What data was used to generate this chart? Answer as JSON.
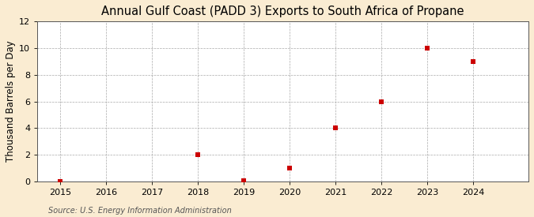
{
  "title": "Annual Gulf Coast (PADD 3) Exports to South Africa of Propane",
  "ylabel": "Thousand Barrels per Day",
  "source": "Source: U.S. Energy Information Administration",
  "figure_bg_color": "#faecd2",
  "plot_bg_color": "#ffffff",
  "x_values": [
    2015,
    2018,
    2019,
    2020,
    2021,
    2022,
    2023,
    2024
  ],
  "y_values": [
    0,
    2,
    0.05,
    1,
    4,
    6,
    10,
    9
  ],
  "marker_color": "#cc0000",
  "xlim": [
    2014.5,
    2025.2
  ],
  "ylim": [
    0,
    12
  ],
  "yticks": [
    0,
    2,
    4,
    6,
    8,
    10,
    12
  ],
  "xticks": [
    2015,
    2016,
    2017,
    2018,
    2019,
    2020,
    2021,
    2022,
    2023,
    2024
  ],
  "grid_color": "#aaaaaa",
  "title_fontsize": 10.5,
  "label_fontsize": 8.5,
  "tick_fontsize": 8,
  "source_fontsize": 7
}
